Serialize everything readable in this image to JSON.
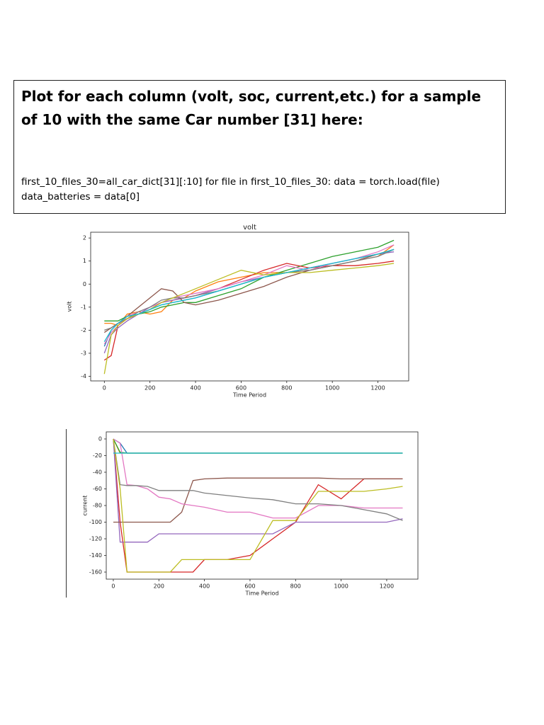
{
  "document": {
    "heading": "Plot for each column (volt, soc, current,etc.) for a sample of 10 with the same Car number [31] here:",
    "code": "first_10_files_30=all_car_dict[31][:10] for file in first_10_files_30: data = torch.load(file) data_batteries = data[0]"
  },
  "chart_data": [
    {
      "type": "line",
      "title": "volt",
      "x_label": "Time Period",
      "y_label": "volt",
      "x": [
        0,
        30,
        60,
        100,
        150,
        200,
        250,
        300,
        350,
        400,
        500,
        600,
        700,
        800,
        900,
        1000,
        1100,
        1200,
        1270
      ],
      "xlim": [
        -60,
        1335
      ],
      "ylim": [
        -4.2,
        2.25
      ],
      "xticks": [
        0,
        200,
        400,
        600,
        800,
        1000,
        1200
      ],
      "yticks": [
        -4,
        -3,
        -2,
        -1,
        0,
        1,
        2
      ],
      "series": [
        {
          "color": "#1f77b4",
          "values": [
            -2.7,
            -2.0,
            -1.7,
            -1.5,
            -1.3,
            -1.1,
            -0.9,
            -0.8,
            -0.7,
            -0.6,
            -0.3,
            0,
            0.3,
            0.5,
            0.7,
            0.9,
            1.1,
            1.3,
            1.5
          ]
        },
        {
          "color": "#ff7f0e",
          "values": [
            -1.7,
            -1.7,
            -1.8,
            -1.3,
            -1.2,
            -1.3,
            -1.2,
            -0.7,
            -0.6,
            -0.3,
            0.1,
            0.3,
            0.5,
            0.5,
            0.6,
            0.8,
            1.0,
            1.2,
            1.7
          ]
        },
        {
          "color": "#2ca02c",
          "values": [
            -1.6,
            -1.6,
            -1.6,
            -1.4,
            -1.3,
            -1.2,
            -1.0,
            -0.9,
            -0.8,
            -0.8,
            -0.5,
            -0.2,
            0.3,
            0.6,
            0.9,
            1.2,
            1.4,
            1.6,
            1.9
          ]
        },
        {
          "color": "#d62728",
          "values": [
            -3.3,
            -3.1,
            -1.8,
            -1.5,
            -1.3,
            -1.1,
            -0.8,
            -0.7,
            -0.6,
            -0.5,
            -0.2,
            0.2,
            0.6,
            0.9,
            0.7,
            0.8,
            0.8,
            0.9,
            1.0
          ]
        },
        {
          "color": "#9467bd",
          "values": [
            -3.0,
            -2.2,
            -1.9,
            -1.6,
            -1.3,
            -1.0,
            -0.8,
            -0.7,
            -0.6,
            -0.5,
            -0.2,
            0.1,
            0.3,
            0.5,
            0.7,
            0.9,
            1.1,
            1.3,
            1.4
          ]
        },
        {
          "color": "#8c564b",
          "values": [
            -2.1,
            -1.9,
            -1.7,
            -1.4,
            -1.0,
            -0.6,
            -0.2,
            -0.3,
            -0.8,
            -0.9,
            -0.7,
            -0.4,
            -0.1,
            0.3,
            0.6,
            0.8,
            1.0,
            1.3,
            1.5
          ]
        },
        {
          "color": "#e377c2",
          "values": [
            -2.6,
            -2.1,
            -1.8,
            -1.4,
            -1.2,
            -1.0,
            -0.8,
            -0.6,
            -0.5,
            -0.4,
            -0.2,
            0.1,
            0.4,
            0.8,
            0.6,
            0.9,
            1.1,
            1.4,
            1.7
          ]
        },
        {
          "color": "#7f7f7f",
          "values": [
            -2.0,
            -1.9,
            -1.7,
            -1.5,
            -1.2,
            -1.0,
            -0.7,
            -0.6,
            -0.6,
            -0.5,
            -0.3,
            0,
            0.3,
            0.5,
            0.6,
            0.8,
            1.0,
            1.2,
            1.5
          ]
        },
        {
          "color": "#bcbd22",
          "values": [
            -3.9,
            -2.2,
            -1.8,
            -1.5,
            -1.3,
            -1.1,
            -0.8,
            -0.6,
            -0.4,
            -0.2,
            0.2,
            0.6,
            0.4,
            0.5,
            0.5,
            0.6,
            0.7,
            0.8,
            0.9
          ]
        },
        {
          "color": "#17becf",
          "values": [
            -2.5,
            -2.0,
            -1.7,
            -1.4,
            -1.3,
            -1.1,
            -0.9,
            -0.8,
            -0.7,
            -0.6,
            -0.3,
            0,
            0.3,
            0.5,
            0.7,
            0.9,
            1.1,
            1.3,
            1.5
          ]
        }
      ]
    },
    {
      "type": "line",
      "x_label": "Time Period",
      "y_label": "current",
      "x": [
        0,
        30,
        60,
        100,
        150,
        200,
        250,
        300,
        350,
        400,
        500,
        600,
        700,
        800,
        900,
        1000,
        1100,
        1200,
        1270
      ],
      "xlim": [
        -31,
        1337
      ],
      "ylim": [
        -168.5,
        8.5
      ],
      "xticks": [
        0,
        200,
        400,
        600,
        800,
        1000,
        1200
      ],
      "yticks": [
        0,
        -20,
        -40,
        -60,
        -80,
        -100,
        -120,
        -140,
        -160
      ],
      "series": [
        {
          "color": "#1f77b4",
          "values": [
            0,
            -5,
            -17,
            -17,
            -17,
            -17,
            -17,
            -17,
            -17,
            -17,
            -17,
            -17,
            -17,
            -17,
            -17,
            -17,
            -17,
            -17,
            -17
          ]
        },
        {
          "color": "#ff7f0e",
          "values": [
            0,
            -17,
            -17,
            -17,
            -17,
            -17,
            -17,
            -17,
            -17,
            -17,
            -17,
            -17,
            -17,
            -17,
            -17,
            -17,
            -17,
            -17,
            -17
          ]
        },
        {
          "color": "#2ca02c",
          "values": [
            0,
            -16,
            -17,
            -17,
            -17,
            -17,
            -17,
            -17,
            -17,
            -17,
            -17,
            -17,
            -17,
            -17,
            -17,
            -17,
            -17,
            -17,
            -17
          ]
        },
        {
          "color": "#d62728",
          "values": [
            0,
            -100,
            -160,
            -160,
            -160,
            -160,
            -160,
            -160,
            -160,
            -145,
            -145,
            -140,
            -120,
            -100,
            -55,
            -72,
            -48,
            -48,
            -48
          ]
        },
        {
          "color": "#9467bd",
          "values": [
            0,
            -124,
            -124,
            -124,
            -124,
            -114,
            -114,
            -114,
            -114,
            -114,
            -114,
            -114,
            -114,
            -100,
            -100,
            -100,
            -100,
            -100,
            -96
          ]
        },
        {
          "color": "#8c564b",
          "values": [
            -100,
            -100,
            -100,
            -100,
            -100,
            -100,
            -100,
            -88,
            -50,
            -48,
            -47,
            -47,
            -47,
            -47,
            -47,
            -48,
            -48,
            -48,
            -48
          ]
        },
        {
          "color": "#e377c2",
          "values": [
            0,
            -5,
            -55,
            -56,
            -60,
            -70,
            -72,
            -78,
            -80,
            -82,
            -88,
            -88,
            -95,
            -95,
            -80,
            -80,
            -83,
            -83,
            -83
          ]
        },
        {
          "color": "#7f7f7f",
          "values": [
            0,
            -55,
            -56,
            -56,
            -57,
            -62,
            -62,
            -62,
            -62,
            -65,
            -68,
            -71,
            -73,
            -78,
            -78,
            -80,
            -85,
            -90,
            -98
          ]
        },
        {
          "color": "#bcbd22",
          "values": [
            0,
            -60,
            -160,
            -160,
            -160,
            -160,
            -160,
            -145,
            -145,
            -145,
            -145,
            -145,
            -98,
            -98,
            -63,
            -63,
            -63,
            -60,
            -57
          ]
        },
        {
          "color": "#17becf",
          "values": [
            -17,
            -17,
            -17,
            -17,
            -17,
            -17,
            -17,
            -17,
            -17,
            -17,
            -17,
            -17,
            -17,
            -17,
            -17,
            -17,
            -17,
            -17,
            -17
          ]
        }
      ]
    }
  ]
}
